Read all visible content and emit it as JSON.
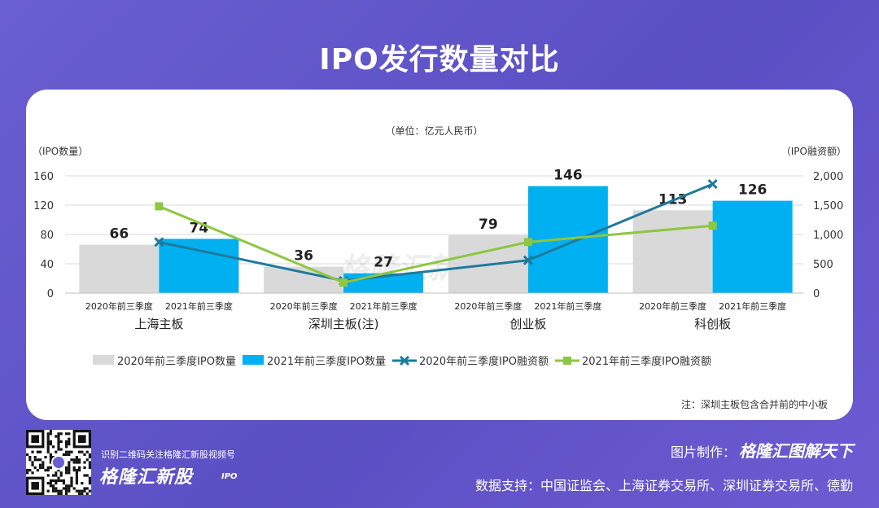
{
  "page": {
    "title": "IPO发行数量对比"
  },
  "footer": {
    "scan_text": "识别二维码关注格隆汇新股视频号",
    "brand": "格隆汇新股",
    "brand_sub": "IPO",
    "maker_label": "图片制作：",
    "maker_name": "格隆汇图解天下",
    "source": "数据支持：中国证监会、上海证券交易所、深圳证券交易所、德勤"
  },
  "colors": {
    "bar_2020": "#d9d9d9",
    "bar_2021": "#00b0f0",
    "line_2020": "#1f7a9c",
    "line_2021": "#8dc63f",
    "background": "#5b4fc4"
  },
  "chart_data": {
    "type": "bar",
    "unit_note": "（单位：亿元人民币）",
    "ylabel_left": "（IPO数量）",
    "ylabel_right": "（IPO融资额）",
    "ylim_left": [
      0,
      160
    ],
    "yticks_left": [
      0,
      40,
      80,
      120,
      160
    ],
    "ylim_right": [
      0,
      2000
    ],
    "yticks_right": [
      "0",
      "500",
      "1,000",
      "1,500",
      "2,000"
    ],
    "grid": true,
    "legend_position": "bottom",
    "groups": [
      "上海主板",
      "深圳主板(注)",
      "创业板",
      "科创板"
    ],
    "sub_categories": [
      "2020年前三季度",
      "2021年前三季度"
    ],
    "series": [
      {
        "name": "2020年前三季度IPO数量",
        "kind": "bar",
        "axis": "left",
        "values": [
          66,
          36,
          79,
          113
        ]
      },
      {
        "name": "2021年前三季度IPO数量",
        "kind": "bar",
        "axis": "left",
        "values": [
          74,
          27,
          146,
          126
        ]
      },
      {
        "name": "2020年前三季度IPO融资额",
        "kind": "line",
        "marker": "x",
        "axis": "right",
        "values": [
          870,
          210,
          560,
          1860
        ]
      },
      {
        "name": "2021年前三季度IPO融资额",
        "kind": "line",
        "marker": "square",
        "axis": "right",
        "values": [
          1480,
          180,
          870,
          1150
        ]
      }
    ],
    "footnote": "注：深圳主板包含合并前的中小板",
    "watermark": "格隆汇新股",
    "watermark_sub": "IPO"
  }
}
